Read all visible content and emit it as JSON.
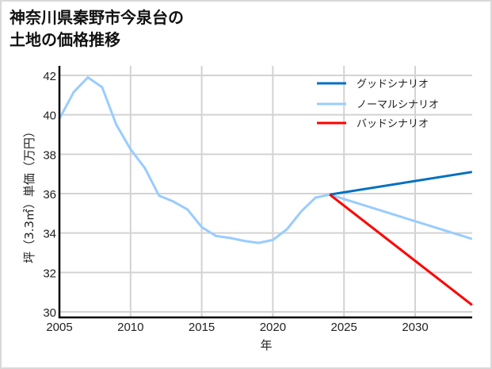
{
  "title_lines": [
    "神奈川県秦野市今泉台の",
    "土地の価格推移"
  ],
  "chart_data": {
    "type": "line",
    "title": "神奈川県秦野市今泉台の土地の価格推移",
    "xlabel": "年",
    "ylabel": "坪（3.3㎡）単価（万円）",
    "xlim": [
      2005,
      2034
    ],
    "ylim": [
      29.7,
      42.5
    ],
    "x_ticks": [
      2005,
      2010,
      2015,
      2020,
      2025,
      2030
    ],
    "y_ticks": [
      30,
      32,
      34,
      36,
      38,
      40,
      42
    ],
    "grid": true,
    "legend_position": "upper right",
    "series": [
      {
        "name": "グッドシナリオ",
        "color": "#0070c0",
        "x": [
          2024,
          2034
        ],
        "values": [
          35.95,
          37.1
        ]
      },
      {
        "name": "ノーマルシナリオ",
        "color": "#99ccff",
        "x": [
          2005,
          2006,
          2007,
          2008,
          2009,
          2010,
          2011,
          2012,
          2013,
          2014,
          2015,
          2016,
          2017,
          2018,
          2019,
          2020,
          2021,
          2022,
          2023,
          2024,
          2034
        ],
        "values": [
          39.8,
          41.15,
          41.9,
          41.4,
          39.5,
          38.25,
          37.3,
          35.9,
          35.6,
          35.2,
          34.3,
          33.85,
          33.75,
          33.6,
          33.5,
          33.65,
          34.2,
          35.1,
          35.8,
          35.95,
          33.7
        ]
      },
      {
        "name": "バッドシナリオ",
        "color": "#ff0000",
        "x": [
          2024,
          2034
        ],
        "values": [
          35.95,
          30.35
        ]
      }
    ]
  }
}
